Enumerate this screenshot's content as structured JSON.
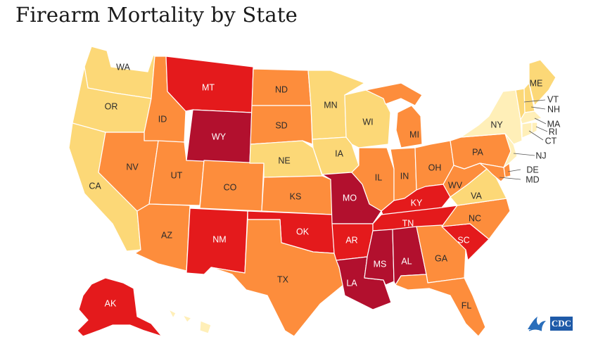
{
  "title": "Firearm Mortality by State",
  "colors": {
    "level1": "#ffefb8",
    "level2": "#fcd877",
    "level3": "#fd8d3c",
    "level4": "#e41a1c",
    "level5": "#b2102e"
  },
  "states": {
    "WA": {
      "label": "WA",
      "level": 2
    },
    "OR": {
      "label": "OR",
      "level": 2
    },
    "CA": {
      "label": "CA",
      "level": 2
    },
    "ID": {
      "label": "ID",
      "level": 3
    },
    "NV": {
      "label": "NV",
      "level": 3
    },
    "UT": {
      "label": "UT",
      "level": 3
    },
    "AZ": {
      "label": "AZ",
      "level": 3
    },
    "MT": {
      "label": "MT",
      "level": 4
    },
    "WY": {
      "label": "WY",
      "level": 5
    },
    "CO": {
      "label": "CO",
      "level": 3
    },
    "NM": {
      "label": "NM",
      "level": 4
    },
    "ND": {
      "label": "ND",
      "level": 3
    },
    "SD": {
      "label": "SD",
      "level": 3
    },
    "NE": {
      "label": "NE",
      "level": 2
    },
    "KS": {
      "label": "KS",
      "level": 3
    },
    "OK": {
      "label": "OK",
      "level": 4
    },
    "TX": {
      "label": "TX",
      "level": 3
    },
    "MN": {
      "label": "MN",
      "level": 2
    },
    "IA": {
      "label": "IA",
      "level": 2
    },
    "MO": {
      "label": "MO",
      "level": 5
    },
    "AR": {
      "label": "AR",
      "level": 4
    },
    "LA": {
      "label": "LA",
      "level": 5
    },
    "WI": {
      "label": "WI",
      "level": 2
    },
    "IL": {
      "label": "IL",
      "level": 3
    },
    "MI": {
      "label": "MI",
      "level": 3
    },
    "IN": {
      "label": "IN",
      "level": 3
    },
    "OH": {
      "label": "OH",
      "level": 3
    },
    "KY": {
      "label": "KY",
      "level": 4
    },
    "TN": {
      "label": "TN",
      "level": 4
    },
    "MS": {
      "label": "MS",
      "level": 5
    },
    "AL": {
      "label": "AL",
      "level": 5
    },
    "GA": {
      "label": "GA",
      "level": 3
    },
    "FL": {
      "label": "FL",
      "level": 3
    },
    "SC": {
      "label": "SC",
      "level": 4
    },
    "NC": {
      "label": "NC",
      "level": 3
    },
    "VA": {
      "label": "VA",
      "level": 2
    },
    "WV": {
      "label": "WV",
      "level": 3
    },
    "PA": {
      "label": "PA",
      "level": 3
    },
    "NY": {
      "label": "NY",
      "level": 1
    },
    "ME": {
      "label": "ME",
      "level": 2
    },
    "VT": {
      "label": "VT",
      "level": 2
    },
    "NH": {
      "label": "NH",
      "level": 2
    },
    "MA": {
      "label": "MA",
      "level": 1
    },
    "RI": {
      "label": "RI",
      "level": 1
    },
    "CT": {
      "label": "CT",
      "level": 1
    },
    "NJ": {
      "label": "NJ",
      "level": 1
    },
    "DE": {
      "label": "DE",
      "level": 3
    },
    "MD": {
      "label": "MD",
      "level": 3
    },
    "AK": {
      "label": "AK",
      "level": 4
    },
    "HI": {
      "label": "",
      "level": 1
    }
  },
  "logo": {
    "text": "CDC",
    "icon": "hhs-eagle-icon"
  }
}
